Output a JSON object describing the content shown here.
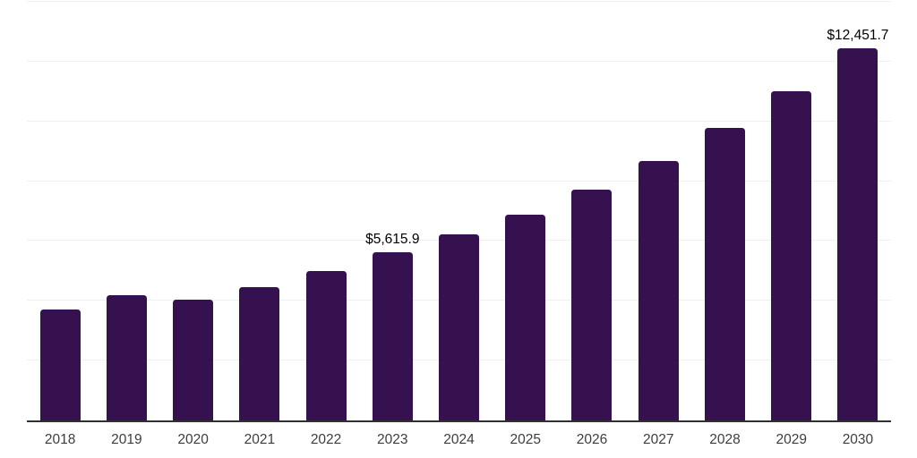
{
  "chart_data": {
    "type": "bar",
    "title": "",
    "xlabel": "",
    "ylabel": "",
    "categories": [
      "2018",
      "2019",
      "2020",
      "2021",
      "2022",
      "2023",
      "2024",
      "2025",
      "2026",
      "2027",
      "2028",
      "2029",
      "2030"
    ],
    "values": [
      3710,
      4180,
      4050,
      4460,
      5010,
      5615.9,
      6220,
      6890,
      7730,
      8690,
      9770,
      11000,
      12451.7
    ],
    "data_labels": {
      "2023": "$5,615.9",
      "2030": "$12,451.7"
    },
    "ylim": [
      0,
      14000
    ],
    "gridline_step": 2000,
    "grid": "horizontal-only",
    "legend": "none",
    "y_axis_tick_labels": "none",
    "colors": {
      "bar": "#361150",
      "gridline": "#f0f0f0",
      "axis_line": "#303030",
      "tick_label": "#3d3d3d",
      "data_label": "#000000",
      "background": "#ffffff"
    }
  }
}
